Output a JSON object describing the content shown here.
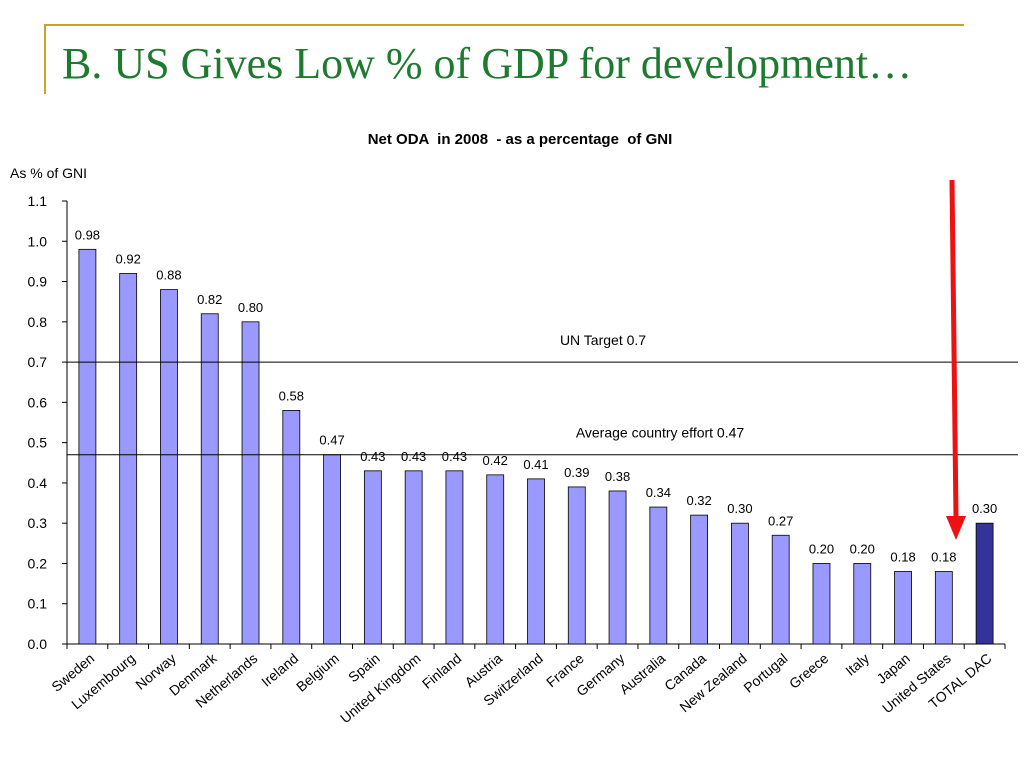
{
  "slide": {
    "title": "B. US Gives Low % of GDP for development…"
  },
  "colors": {
    "title": "#1e7a2e",
    "title_rule": "#c9a227",
    "bar": "#9999ff",
    "bar_total": "#333399",
    "arrow": "#ee1111"
  },
  "chart_data": {
    "type": "bar",
    "title": "Net ODA  in 2008  - as a percentage  of GNI",
    "ylabel": "As % of GNI",
    "xlabel": "",
    "ylim": [
      0,
      1.1
    ],
    "yticks": [
      "0.0",
      "0.1",
      "0.2",
      "0.3",
      "0.4",
      "0.5",
      "0.6",
      "0.7",
      "0.8",
      "0.9",
      "1.0",
      "1.1"
    ],
    "categories": [
      "Sweden",
      "Luxembourg",
      "Norway",
      "Denmark",
      "Netherlands",
      "Ireland",
      "Belgium",
      "Spain",
      "United Kingdom",
      "Finland",
      "Austria",
      "Switzerland",
      "France",
      "Germany",
      "Australia",
      "Canada",
      "New Zealand",
      "Portugal",
      "Greece",
      "Italy",
      "Japan",
      "United States",
      "TOTAL DAC"
    ],
    "values": [
      0.98,
      0.92,
      0.88,
      0.82,
      0.8,
      0.58,
      0.47,
      0.43,
      0.43,
      0.43,
      0.42,
      0.41,
      0.39,
      0.38,
      0.34,
      0.32,
      0.3,
      0.27,
      0.2,
      0.2,
      0.18,
      0.18,
      0.3
    ],
    "value_labels": [
      "0.98",
      "0.92",
      "0.88",
      "0.82",
      "0.80",
      "0.58",
      "0.47",
      "0.43",
      "0.43",
      "0.43",
      "0.42",
      "0.41",
      "0.39",
      "0.38",
      "0.34",
      "0.32",
      "0.30",
      "0.27",
      "0.20",
      "0.20",
      "0.18",
      "0.18",
      "0.30"
    ],
    "highlight_index": 22,
    "reference_lines": [
      {
        "value": 0.7,
        "label": "UN Target 0.7"
      },
      {
        "value": 0.47,
        "label": "Average country effort 0.47"
      }
    ],
    "annotation": {
      "type": "arrow",
      "points_to": "United States"
    },
    "grid": false,
    "legend": "none"
  }
}
